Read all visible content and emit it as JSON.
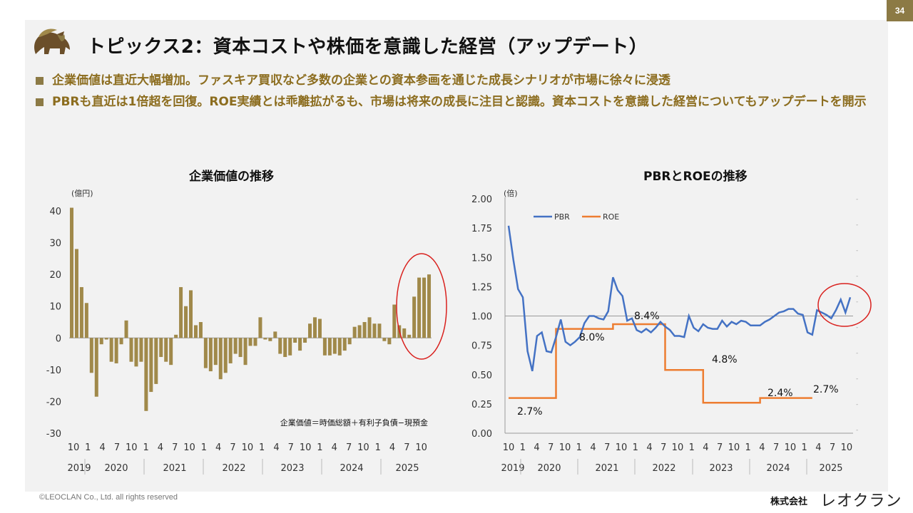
{
  "page_number": "34",
  "title": "トピックス2：資本コストや株価を意識した経営（アップデート）",
  "bullets": [
    "企業価値は直近大幅増加。ファスキア買収など多数の企業との資本参画を通じた成長シナリオが市場に徐々に浸透",
    "PBRも直近は1倍超を回復。ROE実績とは乖離拡がるも、市場は将来の成長に注目と認識。資本コストを意識した経営についてもアップデートを開示"
  ],
  "footer": {
    "copyright": "©LEOCLAN Co., Ltd. all rights reserved",
    "company_prefix": "株式会社",
    "brand": "レオクラン"
  },
  "colors": {
    "bar": "#a0894a",
    "pbr": "#4472c4",
    "roe": "#ed7d31",
    "highlight": "#d9211e",
    "accent": "#8c7a45"
  },
  "chart_data": [
    {
      "type": "bar",
      "title": "企業価値の推移",
      "unit_label": "(億円)",
      "note": "企業価値＝時価総額＋有利子負債−現預金",
      "ylim": [
        -30,
        40
      ],
      "yticks": [
        40,
        30,
        20,
        10,
        0,
        -10,
        -20,
        -30
      ],
      "grid": false,
      "x_tick_labels": [
        "10",
        "1",
        "4",
        "7",
        "10",
        "1",
        "4",
        "7",
        "10",
        "1",
        "4",
        "7",
        "10",
        "1",
        "4",
        "7",
        "10",
        "1",
        "4",
        "7",
        "10",
        "1",
        "4",
        "7",
        "10"
      ],
      "year_labels": [
        "2019",
        "2020",
        "2021",
        "2022",
        "2023",
        "2024",
        "2025"
      ],
      "highlight": "last 4 bars circled",
      "values": [
        41,
        28,
        16,
        11,
        -11,
        -18.5,
        -2,
        -0.5,
        -7.5,
        -8,
        -2,
        5.5,
        -7.5,
        -9,
        -7.5,
        -23,
        -17,
        -14.5,
        -6,
        -7.5,
        -8.5,
        1,
        16,
        10,
        15,
        4,
        5,
        -9.5,
        -10.5,
        -8.5,
        -13,
        -11,
        -8,
        -5,
        -6,
        -8.5,
        -2.5,
        -2.5,
        6.5,
        -0.5,
        -1,
        2,
        -5,
        -6,
        -5.5,
        -1.5,
        -4,
        -1.5,
        4.5,
        6.5,
        6,
        -5.5,
        -5.5,
        -5,
        -5.5,
        -4,
        -2,
        3.5,
        4,
        5,
        6.5,
        4.5,
        4.5,
        -1,
        -2,
        10.5,
        4,
        3,
        1,
        13,
        19,
        19,
        20
      ]
    },
    {
      "type": "line",
      "title": "PBRとROEの推移",
      "unit_label": "(倍)",
      "ylim": [
        0,
        2
      ],
      "yticks": [
        "2.00",
        "1.75",
        "1.50",
        "1.25",
        "1.00",
        "0.75",
        "0.50",
        "0.25",
        "0.00"
      ],
      "reference_line": 1.0,
      "legend_position": "top-left",
      "x_tick_labels": [
        "10",
        "1",
        "4",
        "7",
        "10",
        "1",
        "4",
        "7",
        "10",
        "1",
        "4",
        "7",
        "10",
        "1",
        "4",
        "7",
        "10",
        "1",
        "4",
        "7",
        "10",
        "1",
        "4",
        "7",
        "10"
      ],
      "year_labels": [
        "2019",
        "2020",
        "2021",
        "2022",
        "2023",
        "2024",
        "2025"
      ],
      "highlight": "latest PBR values circled",
      "series": [
        {
          "name": "PBR",
          "values": [
            1.77,
            1.48,
            1.23,
            1.16,
            0.7,
            0.53,
            0.83,
            0.86,
            0.7,
            0.69,
            0.82,
            0.97,
            0.78,
            0.75,
            0.78,
            0.82,
            0.94,
            1.0,
            1.0,
            0.98,
            0.97,
            1.04,
            1.33,
            1.22,
            1.17,
            0.96,
            0.98,
            0.88,
            0.86,
            0.89,
            0.86,
            0.9,
            0.95,
            0.91,
            0.88,
            0.83,
            0.83,
            0.82,
            1.0,
            0.9,
            0.87,
            0.93,
            0.9,
            0.89,
            0.89,
            0.96,
            0.91,
            0.95,
            0.93,
            0.96,
            0.95,
            0.92,
            0.92,
            0.92,
            0.95,
            0.97,
            1.0,
            1.03,
            1.04,
            1.06,
            1.06,
            1.02,
            1.01,
            0.86,
            0.84,
            1.05,
            1.03,
            1.01,
            0.98,
            1.05,
            1.14,
            1.03,
            1.16
          ]
        },
        {
          "name": "ROE",
          "steps": [
            [
              0,
              0.3
            ],
            [
              10,
              0.3
            ],
            [
              10,
              0.89
            ],
            [
              22,
              0.89
            ],
            [
              22,
              0.93
            ],
            [
              33,
              0.93
            ],
            [
              33,
              0.54
            ],
            [
              41,
              0.54
            ],
            [
              41,
              0.26
            ],
            [
              53,
              0.26
            ],
            [
              53,
              0.3
            ],
            [
              64,
              0.3
            ]
          ]
        }
      ],
      "annotations": [
        "2.7%",
        "8.0%",
        "8.4%",
        "4.8%",
        "2.4%",
        "2.7%"
      ]
    }
  ]
}
